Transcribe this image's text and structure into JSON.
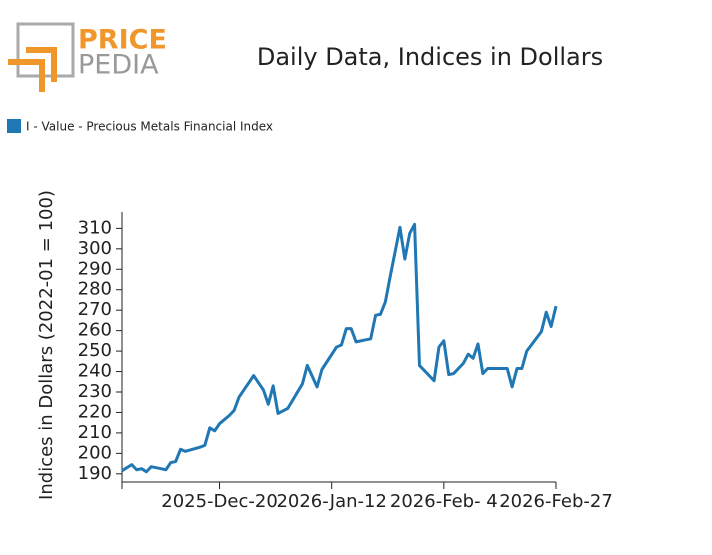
{
  "logo": {
    "top": "PRICE",
    "bottom": "PEDIA"
  },
  "chart_data": {
    "type": "line",
    "title": "Daily Data, Indices in Dollars",
    "y_label": "Indices in Dollars (2022-01 = 100)",
    "legend": "top-left",
    "series": [
      {
        "name": "I - Value - Precious Metals Financial Index",
        "color": "#1f77b4",
        "x": [
          "2025-11-30",
          "2025-12-01",
          "2025-12-02",
          "2025-12-03",
          "2025-12-04",
          "2025-12-05",
          "2025-12-06",
          "2025-12-08",
          "2025-12-09",
          "2025-12-10",
          "2025-12-11",
          "2025-12-12",
          "2025-12-13",
          "2025-12-16",
          "2025-12-17",
          "2025-12-18",
          "2025-12-19",
          "2025-12-20",
          "2025-12-22",
          "2025-12-23",
          "2025-12-24",
          "2025-12-25",
          "2025-12-27",
          "2025-12-29",
          "2025-12-30",
          "2025-12-31",
          "2026-01-01",
          "2026-01-03",
          "2026-01-06",
          "2026-01-07",
          "2026-01-09",
          "2026-01-10",
          "2026-01-13",
          "2026-01-14",
          "2026-01-15",
          "2026-01-16",
          "2026-01-17",
          "2026-01-19",
          "2026-01-20",
          "2026-01-21",
          "2026-01-22",
          "2026-01-23",
          "2026-01-24",
          "2026-01-26",
          "2026-01-27",
          "2026-01-28",
          "2026-01-29",
          "2026-01-30",
          "2026-02-02",
          "2026-02-03",
          "2026-02-04",
          "2026-02-05",
          "2026-02-06",
          "2026-02-08",
          "2026-02-09",
          "2026-02-10",
          "2026-02-11",
          "2026-02-12",
          "2026-02-13",
          "2026-02-15",
          "2026-02-17",
          "2026-02-18",
          "2026-02-19",
          "2026-02-20",
          "2026-02-21",
          "2026-02-24",
          "2026-02-25",
          "2026-02-26",
          "2026-02-27"
        ],
        "values": [
          191.5,
          193,
          194.5,
          192,
          192.5,
          191,
          193.5,
          192.5,
          192,
          195.5,
          196,
          202,
          201,
          203,
          204,
          212.5,
          211,
          214.5,
          218.5,
          221,
          227.5,
          231,
          238,
          231,
          224,
          233,
          219.5,
          222,
          234,
          243,
          232.5,
          241,
          252,
          253,
          261,
          261,
          254.5,
          255.5,
          256,
          267.5,
          268,
          274,
          286.5,
          310.5,
          295,
          307.5,
          312,
          243,
          235.5,
          252,
          255,
          238.5,
          239,
          244,
          248.5,
          246.5,
          253.5,
          239,
          241.5,
          241.5,
          241.5,
          232.5,
          241.5,
          241.5,
          250,
          259.5,
          269,
          262,
          272
        ]
      }
    ],
    "xlim": [
      "2025-11-30",
      "2026-02-27"
    ],
    "xticks": [
      {
        "value": "2025-12-20",
        "label": "2025-Dec-20"
      },
      {
        "value": "2026-01-12",
        "label": "2026-Jan-12"
      },
      {
        "value": "2026-02-04",
        "label": "2026-Feb- 4"
      },
      {
        "value": "2026-02-27",
        "label": "2026-Feb-27"
      }
    ],
    "ylim": [
      186,
      318
    ],
    "yticks": [
      190,
      200,
      210,
      220,
      230,
      240,
      250,
      260,
      270,
      280,
      290,
      300,
      310
    ],
    "grid": false
  }
}
